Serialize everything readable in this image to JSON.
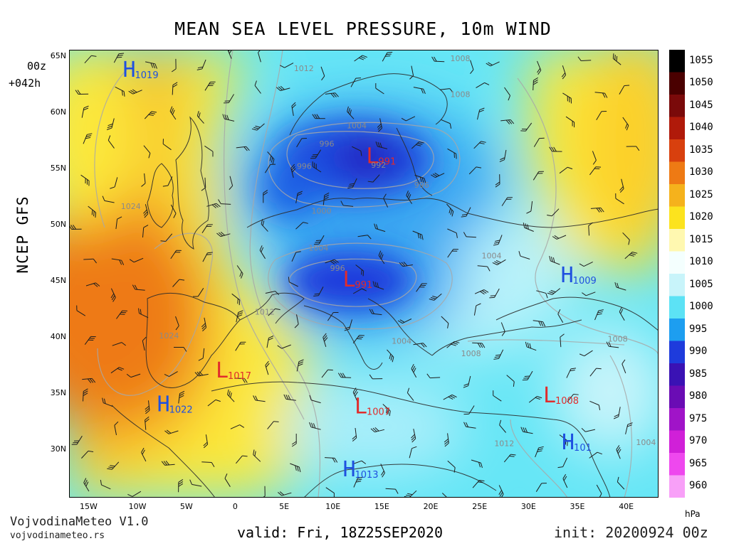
{
  "title": "MEAN SEA LEVEL PRESSURE, 10m WIND",
  "run": {
    "cycle": "00z",
    "lead": "+042h"
  },
  "model": "NCEP GFS",
  "brand": {
    "name": "VojvodinaMeteo V1.0",
    "site": "vojvodinameteo.rs"
  },
  "valid": "valid: Fri, 18Z25SEP2020",
  "init": "init: 20200924 00z",
  "unit": "hPa",
  "colorbar": {
    "levels": [
      "1055",
      "1050",
      "1045",
      "1040",
      "1035",
      "1030",
      "1025",
      "1020",
      "1015",
      "1010",
      "1005",
      "1000",
      "995",
      "990",
      "985",
      "980",
      "975",
      "970",
      "965",
      "960"
    ],
    "colors": [
      "#000000",
      "#4a0000",
      "#7a0a0a",
      "#b01a0a",
      "#d8400e",
      "#ee7a14",
      "#f5b21c",
      "#fce31e",
      "#fff8b0",
      "#f4fffe",
      "#c8f4fa",
      "#5ce2f5",
      "#1d9ef0",
      "#1e3bdc",
      "#3a12b4",
      "#6a0cb4",
      "#a014c8",
      "#d020d8",
      "#ee48ee",
      "#f8a0f8"
    ]
  },
  "lat_ticks": [
    "65N",
    "60N",
    "55N",
    "50N",
    "45N",
    "40N",
    "35N",
    "30N"
  ],
  "lon_ticks": [
    "15W",
    "10W",
    "5W",
    "0",
    "5E",
    "10E",
    "15E",
    "20E",
    "25E",
    "30E",
    "35E",
    "40E"
  ],
  "pressure_centers": [
    {
      "type": "H",
      "value": "1019",
      "lon": -11.5,
      "lat": 63.2,
      "color": "#1e50e0"
    },
    {
      "type": "L",
      "value": "991",
      "lon": 13.4,
      "lat": 55.5,
      "color": "#e02c2c"
    },
    {
      "type": "L",
      "value": "991",
      "lon": 11.0,
      "lat": 44.5,
      "color": "#e02c2c"
    },
    {
      "type": "H",
      "value": "1009",
      "lon": 33.3,
      "lat": 44.9,
      "color": "#1e50e0"
    },
    {
      "type": "L",
      "value": "1017",
      "lon": -2.0,
      "lat": 36.4,
      "color": "#e02c2c"
    },
    {
      "type": "L",
      "value": "1007",
      "lon": 12.2,
      "lat": 33.2,
      "color": "#e02c2c"
    },
    {
      "type": "L",
      "value": "1008",
      "lon": 31.5,
      "lat": 34.2,
      "color": "#e02c2c"
    },
    {
      "type": "H",
      "value": "1022",
      "lon": -8.0,
      "lat": 33.4,
      "color": "#1e50e0"
    },
    {
      "type": "H",
      "value": "1013",
      "lon": 11.0,
      "lat": 27.6,
      "color": "#1e50e0"
    },
    {
      "type": "H",
      "value": "101",
      "lon": 33.4,
      "lat": 30.0,
      "color": "#1e50e0"
    }
  ],
  "isobar_labels": [
    {
      "text": "1012",
      "lon": 6.0,
      "lat": 63.7
    },
    {
      "text": "1008",
      "lon": 22.0,
      "lat": 64.6
    },
    {
      "text": "1008",
      "lon": 22.0,
      "lat": 61.4
    },
    {
      "text": "996",
      "lon": 8.6,
      "lat": 57.0
    },
    {
      "text": "992",
      "lon": 13.9,
      "lat": 55.1
    },
    {
      "text": "996",
      "lon": 6.3,
      "lat": 55.0
    },
    {
      "text": "996",
      "lon": 18.3,
      "lat": 53.3
    },
    {
      "text": "1004",
      "lon": 11.4,
      "lat": 58.6
    },
    {
      "text": "1024",
      "lon": -11.7,
      "lat": 51.4
    },
    {
      "text": "1000",
      "lon": 7.8,
      "lat": 51.0
    },
    {
      "text": "1004",
      "lon": 7.5,
      "lat": 47.7
    },
    {
      "text": "1004",
      "lon": 25.2,
      "lat": 47.0
    },
    {
      "text": "996",
      "lon": 9.7,
      "lat": 45.9
    },
    {
      "text": "1012",
      "lon": 2.0,
      "lat": 42.0
    },
    {
      "text": "1024",
      "lon": -7.8,
      "lat": 39.9
    },
    {
      "text": "1004",
      "lon": 16.0,
      "lat": 39.4
    },
    {
      "text": "1008",
      "lon": 23.1,
      "lat": 38.3
    },
    {
      "text": "1008",
      "lon": 38.1,
      "lat": 39.6
    },
    {
      "text": "1012",
      "lon": 26.5,
      "lat": 30.3
    },
    {
      "text": "1004",
      "lon": 41.0,
      "lat": 30.4
    }
  ]
}
